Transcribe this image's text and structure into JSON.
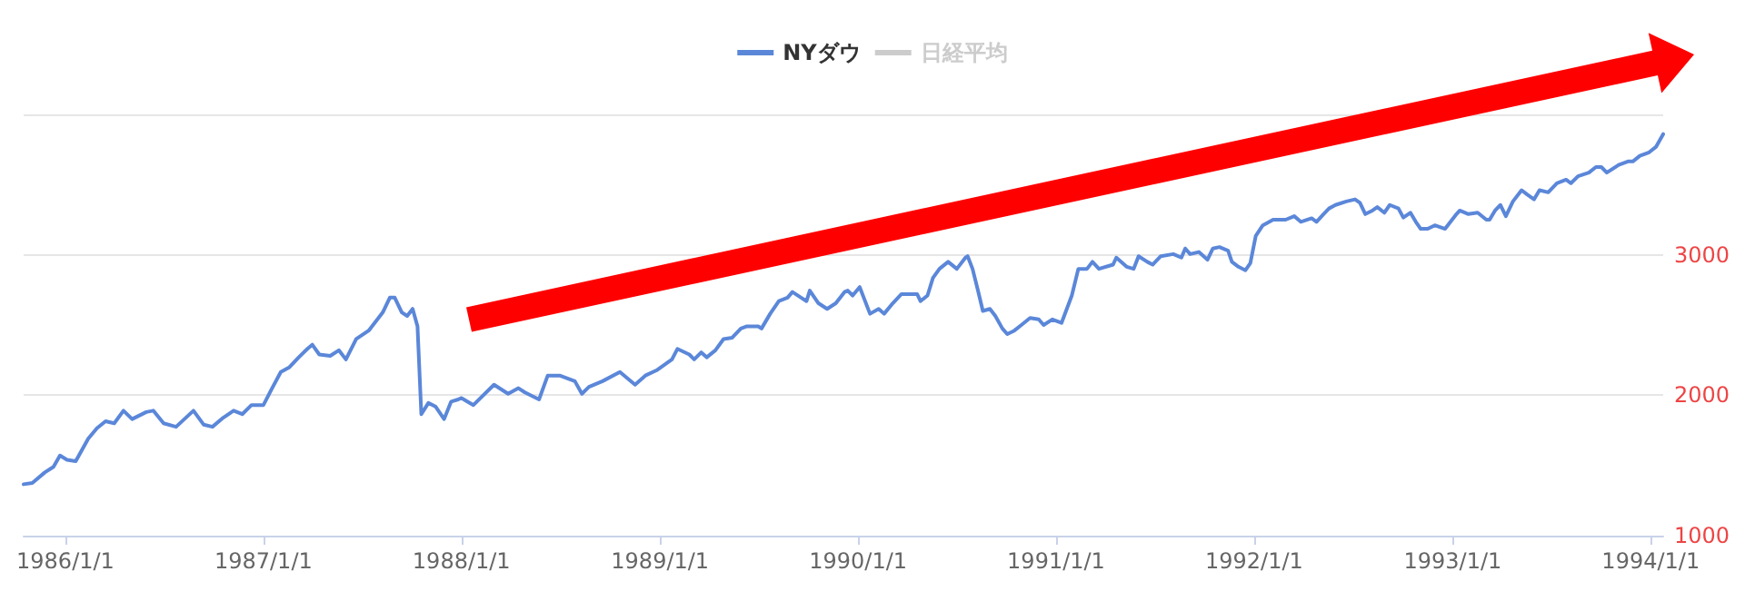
{
  "chart_data": {
    "type": "line",
    "xlim": [
      "1985-10-16",
      "1994-01-24"
    ],
    "xticks": [
      {
        "value": "1986-01-01",
        "label": "1986/1/1"
      },
      {
        "value": "1987-01-01",
        "label": "1987/1/1"
      },
      {
        "value": "1988-01-01",
        "label": "1988/1/1"
      },
      {
        "value": "1989-01-01",
        "label": "1989/1/1"
      },
      {
        "value": "1990-01-01",
        "label": "1990/1/1"
      },
      {
        "value": "1991-01-01",
        "label": "1991/1/1"
      },
      {
        "value": "1992-01-01",
        "label": "1992/1/1"
      },
      {
        "value": "1993-01-01",
        "label": "1993/1/1"
      },
      {
        "value": "1994-01-01",
        "label": "1994/1/1"
      }
    ],
    "ylim": [
      1000,
      4000
    ],
    "yticks": [
      1000,
      2000,
      3000,
      {
        "value": 4000,
        "label": null
      }
    ],
    "grid": "y",
    "legend": "top",
    "marker": "none",
    "line_style": "solid",
    "series": [
      {
        "name": "NYダウ",
        "color": "#5b87d9",
        "x": [
          "1985-10-16",
          "1985-11-01",
          "1985-11-24",
          "1985-12-10",
          "1985-12-22",
          "1986-01-04",
          "1986-01-20",
          "1986-02-12",
          "1986-02-28",
          "1986-03-16",
          "1986-04-01",
          "1986-04-18",
          "1986-05-04",
          "1986-05-30",
          "1986-06-12",
          "1986-07-01",
          "1986-07-24",
          "1986-08-25",
          "1986-09-13",
          "1986-09-29",
          "1986-10-19",
          "1986-11-07",
          "1986-11-23",
          "1986-12-10",
          "1987-01-01",
          "1987-01-17",
          "1987-02-02",
          "1987-02-18",
          "1987-03-07",
          "1987-03-23",
          "1987-04-01",
          "1987-04-14",
          "1987-05-04",
          "1987-05-20",
          "1987-06-02",
          "1987-06-21",
          "1987-07-14",
          "1987-08-09",
          "1987-08-22",
          "1987-08-31",
          "1987-09-13",
          "1987-09-23",
          "1987-10-03",
          "1987-10-12",
          "1987-10-19",
          "1987-11-01",
          "1987-11-14",
          "1987-11-30",
          "1987-12-13",
          "1987-12-26",
          "1988-01-01",
          "1988-01-23",
          "1988-03-01",
          "1988-03-27",
          "1988-04-15",
          "1988-04-27",
          "1988-05-23",
          "1988-06-08",
          "1988-06-30",
          "1988-07-28",
          "1988-08-10",
          "1988-08-23",
          "1988-09-17",
          "1988-10-19",
          "1988-11-16",
          "1988-12-05",
          "1988-12-27",
          "1989-01-23",
          "1989-02-02",
          "1989-02-24",
          "1989-03-05",
          "1989-03-18",
          "1989-03-28",
          "1989-04-13",
          "1989-04-28",
          "1989-05-14",
          "1989-05-30",
          "1989-06-09",
          "1989-07-01",
          "1989-07-07",
          "1989-07-23",
          "1989-08-08",
          "1989-08-24",
          "1989-09-02",
          "1989-09-18",
          "1989-09-28",
          "1989-10-04",
          "1989-10-20",
          "1989-11-05",
          "1989-11-21",
          "1989-12-07",
          "1989-12-13",
          "1989-12-22",
          "1990-01-04",
          "1990-01-23",
          "1990-02-08",
          "1990-02-18",
          "1990-03-06",
          "1990-03-22",
          "1990-04-07",
          "1990-04-20",
          "1990-04-26",
          "1990-05-09",
          "1990-05-19",
          "1990-05-31",
          "1990-06-16",
          "1990-07-02",
          "1990-07-18",
          "1990-07-22",
          "1990-07-31",
          "1990-08-10",
          "1990-08-19",
          "1990-09-01",
          "1990-09-11",
          "1990-09-24",
          "1990-10-03",
          "1990-10-16",
          "1990-10-29",
          "1990-11-14",
          "1990-11-30",
          "1990-12-09",
          "1990-12-25",
          "1991-01-11",
          "1991-01-30",
          "1991-02-11",
          "1991-02-27",
          "1991-03-09",
          "1991-03-21",
          "1991-04-16",
          "1991-04-22",
          "1991-05-11",
          "1991-05-24",
          "1991-06-02",
          "1991-06-18",
          "1991-06-28",
          "1991-07-13",
          "1991-08-05",
          "1991-08-20",
          "1991-08-27",
          "1991-09-05",
          "1991-09-21",
          "1991-10-07",
          "1991-10-17",
          "1991-10-29",
          "1991-11-14",
          "1991-11-21",
          "1991-12-03",
          "1991-12-16",
          "1991-12-25",
          "1992-01-04",
          "1992-01-17",
          "1992-02-05",
          "1992-02-28",
          "1992-03-15",
          "1992-03-27",
          "1992-04-16",
          "1992-04-25",
          "1992-05-08",
          "1992-05-18",
          "1992-05-30",
          "1992-06-19",
          "1992-07-05",
          "1992-07-14",
          "1992-07-24",
          "1992-08-06",
          "1992-08-15",
          "1992-08-28",
          "1992-09-07",
          "1992-09-23",
          "1992-10-02",
          "1992-10-15",
          "1992-10-25",
          "1992-11-03",
          "1992-11-16",
          "1992-11-29",
          "1992-12-18",
          "1993-01-08",
          "1993-01-14",
          "1993-01-30",
          "1993-02-16",
          "1993-03-04",
          "1993-03-10",
          "1993-03-20",
          "1993-03-30",
          "1993-04-09",
          "1993-04-22",
          "1993-05-08",
          "1993-05-18",
          "1993-05-31",
          "1993-06-10",
          "1993-06-26",
          "1993-07-12",
          "1993-07-29",
          "1993-08-07",
          "1993-08-20",
          "1993-09-09",
          "1993-09-22",
          "1993-10-02",
          "1993-10-12",
          "1993-11-03",
          "1993-11-20",
          "1993-11-29",
          "1993-12-12",
          "1993-12-29",
          "1994-01-11",
          "1994-01-24"
        ],
        "values": [
          1366,
          1375,
          1450,
          1490,
          1570,
          1540,
          1530,
          1690,
          1765,
          1815,
          1800,
          1890,
          1830,
          1880,
          1890,
          1800,
          1775,
          1890,
          1790,
          1775,
          1840,
          1890,
          1865,
          1930,
          1930,
          2050,
          2165,
          2200,
          2270,
          2330,
          2360,
          2290,
          2280,
          2320,
          2255,
          2400,
          2460,
          2590,
          2695,
          2695,
          2590,
          2565,
          2615,
          2490,
          1865,
          1945,
          1920,
          1830,
          1955,
          1970,
          1980,
          1930,
          2075,
          2010,
          2050,
          2020,
          1970,
          2140,
          2140,
          2100,
          2010,
          2060,
          2100,
          2165,
          2075,
          2140,
          2180,
          2255,
          2330,
          2290,
          2255,
          2305,
          2270,
          2320,
          2400,
          2410,
          2475,
          2490,
          2490,
          2475,
          2580,
          2670,
          2695,
          2735,
          2695,
          2670,
          2745,
          2655,
          2615,
          2655,
          2735,
          2745,
          2710,
          2770,
          2580,
          2615,
          2580,
          2655,
          2720,
          2720,
          2720,
          2670,
          2710,
          2835,
          2900,
          2950,
          2900,
          2980,
          2990,
          2900,
          2745,
          2600,
          2615,
          2565,
          2475,
          2435,
          2460,
          2500,
          2550,
          2540,
          2500,
          2540,
          2515,
          2710,
          2900,
          2900,
          2950,
          2900,
          2930,
          2980,
          2915,
          2900,
          2990,
          2950,
          2930,
          2990,
          3005,
          2980,
          3045,
          3005,
          3020,
          2965,
          3045,
          3055,
          3030,
          2950,
          2915,
          2890,
          2940,
          3135,
          3210,
          3250,
          3250,
          3275,
          3235,
          3260,
          3235,
          3290,
          3330,
          3355,
          3380,
          3395,
          3370,
          3290,
          3315,
          3340,
          3300,
          3355,
          3330,
          3265,
          3300,
          3235,
          3185,
          3185,
          3210,
          3185,
          3290,
          3315,
          3290,
          3300,
          3250,
          3250,
          3315,
          3355,
          3275,
          3380,
          3460,
          3430,
          3395,
          3460,
          3445,
          3510,
          3535,
          3510,
          3560,
          3585,
          3625,
          3625,
          3585,
          3640,
          3665,
          3665,
          3705,
          3730,
          3770,
          3860
        ]
      },
      {
        "name": "日経平均",
        "color": "#cccccc"
      }
    ]
  }
}
